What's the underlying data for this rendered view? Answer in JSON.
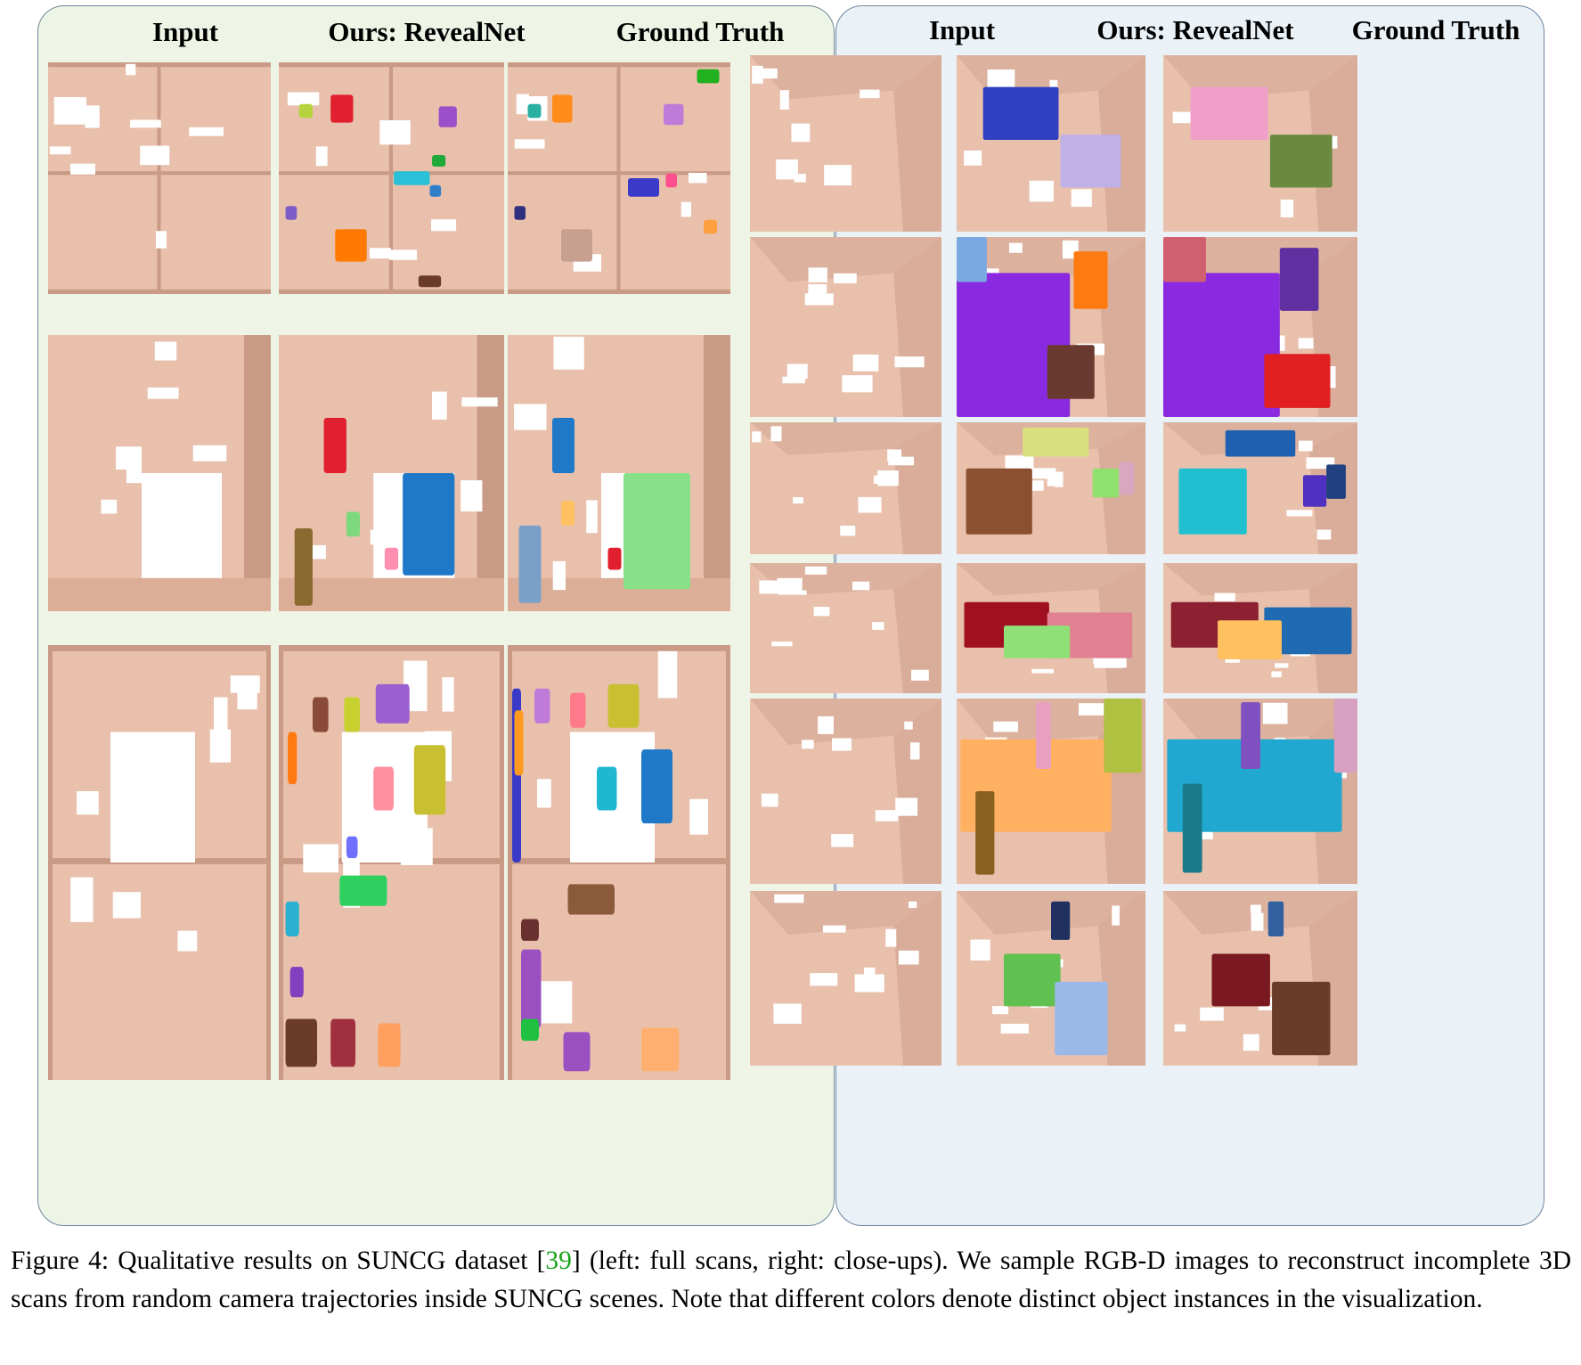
{
  "left_panel": {
    "headers": {
      "input": "Input",
      "ours": "Ours: RevealNet",
      "gt": "Ground Truth"
    }
  },
  "right_panel": {
    "headers": {
      "input": "Input",
      "ours": "Ours: RevealNet",
      "gt": "Ground Truth"
    }
  },
  "caption": {
    "figure_label": "Figure 4:",
    "text_before_cite": " Qualitative results on SUNCG dataset [",
    "cite_number": "39",
    "text_after_cite": "] (left: full scans, right: close-ups). We sample RGB-D images to reconstruct incomplete 3D scans from random camera trajectories inside SUNCG scenes. Note that different colors denote distinct object instances in the visualization."
  },
  "colors": {
    "geometry": "#e8c0ac",
    "wall_shadow": "#c99a86",
    "hole": "#ffffff",
    "left_panel_bg": "#eef5e6",
    "right_panel_bg": "#eaf2f8",
    "panel_border": "#6f86a0",
    "citation": "#1aa31a"
  }
}
